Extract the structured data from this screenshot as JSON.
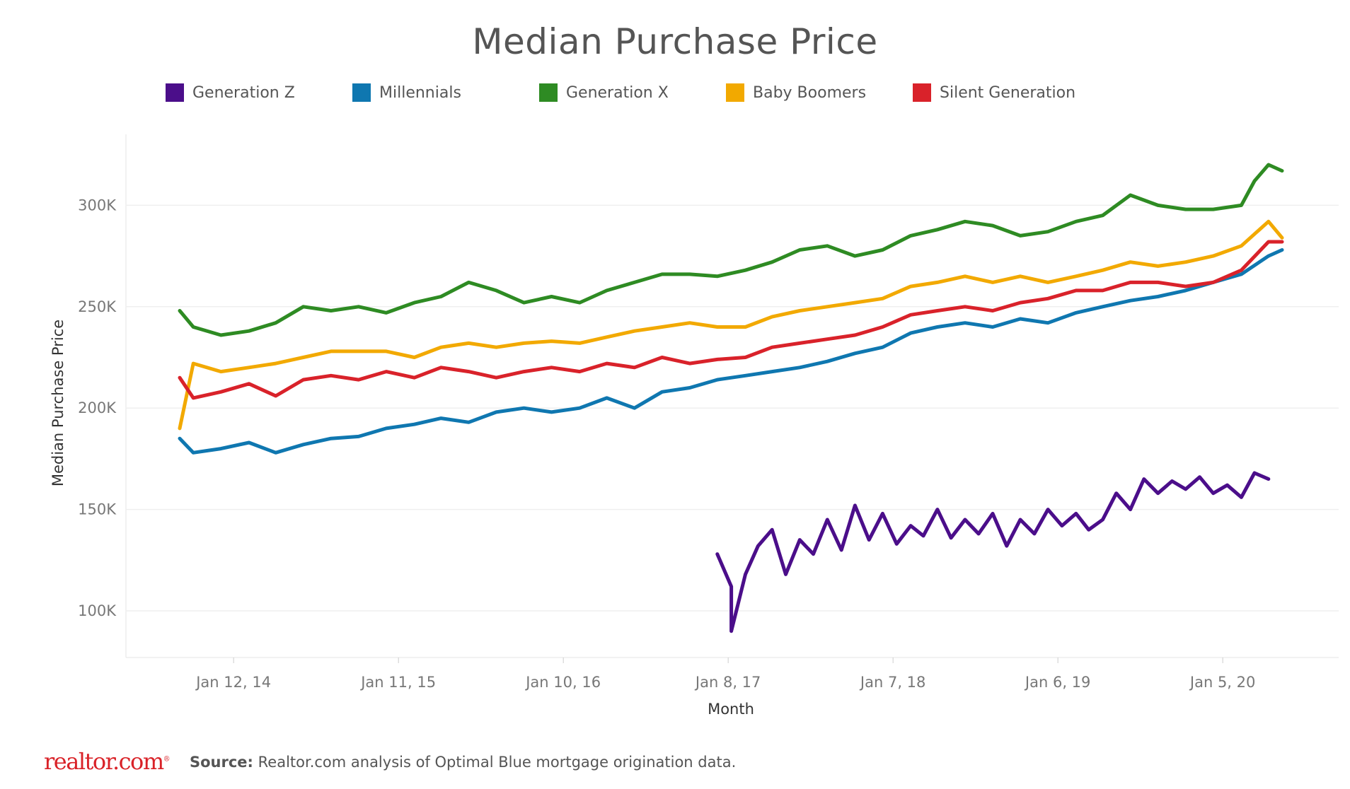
{
  "chart_data": {
    "type": "line",
    "title": "Median Purchase Price",
    "xlabel": "Month",
    "ylabel": "Median Purchase Price",
    "x_range": [
      "2013-09",
      "2020-05"
    ],
    "ylim": [
      77000,
      335000
    ],
    "y_ticks": [
      100000,
      150000,
      200000,
      250000,
      300000
    ],
    "y_tick_labels": [
      "100K",
      "150K",
      "200K",
      "250K",
      "300K"
    ],
    "x_ticks": [
      "2014-01-12",
      "2015-01-11",
      "2016-01-10",
      "2017-01-08",
      "2018-01-07",
      "2019-01-06",
      "2020-01-05"
    ],
    "x_tick_labels": [
      "Jan 12, 14",
      "Jan 11, 15",
      "Jan 10, 16",
      "Jan 8, 17",
      "Jan 7, 18",
      "Jan 6, 19",
      "Jan 5, 20"
    ],
    "grid": "horizontal",
    "legend_position": "top",
    "series": [
      {
        "name": "Generation Z",
        "color": "#4b0e8a",
        "points": [
          [
            "2016-12",
            128000
          ],
          [
            "2017-01",
            112000
          ],
          [
            "2017-01",
            90000
          ],
          [
            "2017-02",
            118000
          ],
          [
            "2017-03",
            132000
          ],
          [
            "2017-04",
            140000
          ],
          [
            "2017-05",
            118000
          ],
          [
            "2017-06",
            135000
          ],
          [
            "2017-07",
            128000
          ],
          [
            "2017-08",
            145000
          ],
          [
            "2017-09",
            130000
          ],
          [
            "2017-10",
            152000
          ],
          [
            "2017-11",
            135000
          ],
          [
            "2017-12",
            148000
          ],
          [
            "2018-01",
            133000
          ],
          [
            "2018-02",
            142000
          ],
          [
            "2018-03",
            137000
          ],
          [
            "2018-04",
            150000
          ],
          [
            "2018-05",
            136000
          ],
          [
            "2018-06",
            145000
          ],
          [
            "2018-07",
            138000
          ],
          [
            "2018-08",
            148000
          ],
          [
            "2018-09",
            132000
          ],
          [
            "2018-10",
            145000
          ],
          [
            "2018-11",
            138000
          ],
          [
            "2018-12",
            150000
          ],
          [
            "2019-01",
            142000
          ],
          [
            "2019-02",
            148000
          ],
          [
            "2019-03",
            140000
          ],
          [
            "2019-04",
            145000
          ],
          [
            "2019-05",
            158000
          ],
          [
            "2019-06",
            150000
          ],
          [
            "2019-07",
            165000
          ],
          [
            "2019-08",
            158000
          ],
          [
            "2019-09",
            164000
          ],
          [
            "2019-10",
            160000
          ],
          [
            "2019-11",
            166000
          ],
          [
            "2019-12",
            158000
          ],
          [
            "2020-01",
            162000
          ],
          [
            "2020-02",
            156000
          ],
          [
            "2020-03",
            168000
          ],
          [
            "2020-04",
            165000
          ]
        ]
      },
      {
        "name": "Millennials",
        "color": "#0f77b0",
        "points": [
          [
            "2013-09",
            185000
          ],
          [
            "2013-10",
            178000
          ],
          [
            "2013-12",
            180000
          ],
          [
            "2014-02",
            183000
          ],
          [
            "2014-04",
            178000
          ],
          [
            "2014-06",
            182000
          ],
          [
            "2014-08",
            185000
          ],
          [
            "2014-10",
            186000
          ],
          [
            "2014-12",
            190000
          ],
          [
            "2015-02",
            192000
          ],
          [
            "2015-04",
            195000
          ],
          [
            "2015-06",
            193000
          ],
          [
            "2015-08",
            198000
          ],
          [
            "2015-10",
            200000
          ],
          [
            "2015-12",
            198000
          ],
          [
            "2016-02",
            200000
          ],
          [
            "2016-04",
            205000
          ],
          [
            "2016-06",
            200000
          ],
          [
            "2016-08",
            208000
          ],
          [
            "2016-10",
            210000
          ],
          [
            "2016-12",
            214000
          ],
          [
            "2017-02",
            216000
          ],
          [
            "2017-04",
            218000
          ],
          [
            "2017-06",
            220000
          ],
          [
            "2017-08",
            223000
          ],
          [
            "2017-10",
            227000
          ],
          [
            "2017-12",
            230000
          ],
          [
            "2018-02",
            237000
          ],
          [
            "2018-04",
            240000
          ],
          [
            "2018-06",
            242000
          ],
          [
            "2018-08",
            240000
          ],
          [
            "2018-10",
            244000
          ],
          [
            "2018-12",
            242000
          ],
          [
            "2019-02",
            247000
          ],
          [
            "2019-04",
            250000
          ],
          [
            "2019-06",
            253000
          ],
          [
            "2019-08",
            255000
          ],
          [
            "2019-10",
            258000
          ],
          [
            "2019-12",
            262000
          ],
          [
            "2020-02",
            266000
          ],
          [
            "2020-04",
            275000
          ],
          [
            "2020-05",
            278000
          ]
        ]
      },
      {
        "name": "Generation X",
        "color": "#2e8b23",
        "points": [
          [
            "2013-09",
            248000
          ],
          [
            "2013-10",
            240000
          ],
          [
            "2013-12",
            236000
          ],
          [
            "2014-02",
            238000
          ],
          [
            "2014-04",
            242000
          ],
          [
            "2014-06",
            250000
          ],
          [
            "2014-08",
            248000
          ],
          [
            "2014-10",
            250000
          ],
          [
            "2014-12",
            247000
          ],
          [
            "2015-02",
            252000
          ],
          [
            "2015-04",
            255000
          ],
          [
            "2015-06",
            262000
          ],
          [
            "2015-08",
            258000
          ],
          [
            "2015-10",
            252000
          ],
          [
            "2015-12",
            255000
          ],
          [
            "2016-02",
            252000
          ],
          [
            "2016-04",
            258000
          ],
          [
            "2016-06",
            262000
          ],
          [
            "2016-08",
            266000
          ],
          [
            "2016-10",
            266000
          ],
          [
            "2016-12",
            265000
          ],
          [
            "2017-02",
            268000
          ],
          [
            "2017-04",
            272000
          ],
          [
            "2017-06",
            278000
          ],
          [
            "2017-08",
            280000
          ],
          [
            "2017-10",
            275000
          ],
          [
            "2017-12",
            278000
          ],
          [
            "2018-02",
            285000
          ],
          [
            "2018-04",
            288000
          ],
          [
            "2018-06",
            292000
          ],
          [
            "2018-08",
            290000
          ],
          [
            "2018-10",
            285000
          ],
          [
            "2018-12",
            287000
          ],
          [
            "2019-02",
            292000
          ],
          [
            "2019-04",
            295000
          ],
          [
            "2019-06",
            305000
          ],
          [
            "2019-08",
            300000
          ],
          [
            "2019-10",
            298000
          ],
          [
            "2019-12",
            298000
          ],
          [
            "2020-02",
            300000
          ],
          [
            "2020-03",
            312000
          ],
          [
            "2020-04",
            320000
          ],
          [
            "2020-05",
            317000
          ]
        ]
      },
      {
        "name": "Baby Boomers",
        "color": "#f2a900",
        "points": [
          [
            "2013-09",
            190000
          ],
          [
            "2013-10",
            222000
          ],
          [
            "2013-12",
            218000
          ],
          [
            "2014-02",
            220000
          ],
          [
            "2014-04",
            222000
          ],
          [
            "2014-06",
            225000
          ],
          [
            "2014-08",
            228000
          ],
          [
            "2014-10",
            228000
          ],
          [
            "2014-12",
            228000
          ],
          [
            "2015-02",
            225000
          ],
          [
            "2015-04",
            230000
          ],
          [
            "2015-06",
            232000
          ],
          [
            "2015-08",
            230000
          ],
          [
            "2015-10",
            232000
          ],
          [
            "2015-12",
            233000
          ],
          [
            "2016-02",
            232000
          ],
          [
            "2016-04",
            235000
          ],
          [
            "2016-06",
            238000
          ],
          [
            "2016-08",
            240000
          ],
          [
            "2016-10",
            242000
          ],
          [
            "2016-12",
            240000
          ],
          [
            "2017-02",
            240000
          ],
          [
            "2017-04",
            245000
          ],
          [
            "2017-06",
            248000
          ],
          [
            "2017-08",
            250000
          ],
          [
            "2017-10",
            252000
          ],
          [
            "2017-12",
            254000
          ],
          [
            "2018-02",
            260000
          ],
          [
            "2018-04",
            262000
          ],
          [
            "2018-06",
            265000
          ],
          [
            "2018-08",
            262000
          ],
          [
            "2018-10",
            265000
          ],
          [
            "2018-12",
            262000
          ],
          [
            "2019-02",
            265000
          ],
          [
            "2019-04",
            268000
          ],
          [
            "2019-06",
            272000
          ],
          [
            "2019-08",
            270000
          ],
          [
            "2019-10",
            272000
          ],
          [
            "2019-12",
            275000
          ],
          [
            "2020-02",
            280000
          ],
          [
            "2020-04",
            292000
          ],
          [
            "2020-05",
            284000
          ]
        ]
      },
      {
        "name": "Silent Generation",
        "color": "#d9222a",
        "points": [
          [
            "2013-09",
            215000
          ],
          [
            "2013-10",
            205000
          ],
          [
            "2013-12",
            208000
          ],
          [
            "2014-02",
            212000
          ],
          [
            "2014-04",
            206000
          ],
          [
            "2014-06",
            214000
          ],
          [
            "2014-08",
            216000
          ],
          [
            "2014-10",
            214000
          ],
          [
            "2014-12",
            218000
          ],
          [
            "2015-02",
            215000
          ],
          [
            "2015-04",
            220000
          ],
          [
            "2015-06",
            218000
          ],
          [
            "2015-08",
            215000
          ],
          [
            "2015-10",
            218000
          ],
          [
            "2015-12",
            220000
          ],
          [
            "2016-02",
            218000
          ],
          [
            "2016-04",
            222000
          ],
          [
            "2016-06",
            220000
          ],
          [
            "2016-08",
            225000
          ],
          [
            "2016-10",
            222000
          ],
          [
            "2016-12",
            224000
          ],
          [
            "2017-02",
            225000
          ],
          [
            "2017-04",
            230000
          ],
          [
            "2017-06",
            232000
          ],
          [
            "2017-08",
            234000
          ],
          [
            "2017-10",
            236000
          ],
          [
            "2017-12",
            240000
          ],
          [
            "2018-02",
            246000
          ],
          [
            "2018-04",
            248000
          ],
          [
            "2018-06",
            250000
          ],
          [
            "2018-08",
            248000
          ],
          [
            "2018-10",
            252000
          ],
          [
            "2018-12",
            254000
          ],
          [
            "2019-02",
            258000
          ],
          [
            "2019-04",
            258000
          ],
          [
            "2019-06",
            262000
          ],
          [
            "2019-08",
            262000
          ],
          [
            "2019-10",
            260000
          ],
          [
            "2019-12",
            262000
          ],
          [
            "2020-02",
            268000
          ],
          [
            "2020-04",
            282000
          ],
          [
            "2020-05",
            282000
          ]
        ]
      }
    ]
  },
  "footer": {
    "logo_text": "realtor.com",
    "logo_mark": "®",
    "source_label": "Source:",
    "source_text": " Realtor.com analysis of Optimal Blue mortgage origination data."
  }
}
